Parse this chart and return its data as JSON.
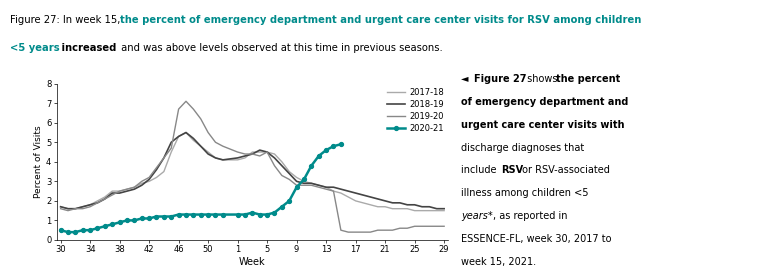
{
  "ylabel": "Percent of Visits",
  "xlabel": "Week",
  "ylim": [
    0,
    8
  ],
  "yticks": [
    0,
    1,
    2,
    3,
    4,
    5,
    6,
    7,
    8
  ],
  "xtick_labels": [
    "30",
    "34",
    "38",
    "42",
    "46",
    "50",
    "1",
    "5",
    "9",
    "13",
    "17",
    "21",
    "25",
    "29"
  ],
  "series_2017": {
    "label": "2017-18",
    "color": "#aaaaaa",
    "linewidth": 1.0
  },
  "series_2018": {
    "label": "2018-19",
    "color": "#444444",
    "linewidth": 1.2
  },
  "series_2019": {
    "label": "2019-20",
    "color": "#888888",
    "linewidth": 1.0
  },
  "series_2020": {
    "label": "2020-21",
    "color": "#008B8B",
    "linewidth": 1.8
  },
  "x_2017": [
    30,
    31,
    32,
    33,
    34,
    35,
    36,
    37,
    38,
    39,
    40,
    41,
    42,
    43,
    44,
    45,
    46,
    47,
    48,
    49,
    50,
    51,
    52,
    1,
    2,
    3,
    4,
    5,
    6,
    7,
    8,
    9,
    10,
    11,
    12,
    13,
    14,
    15,
    16,
    17,
    18,
    19,
    20,
    21,
    22,
    23,
    24,
    25,
    26,
    27,
    28,
    29
  ],
  "y_2017": [
    1.7,
    1.6,
    1.6,
    1.7,
    1.8,
    2.0,
    2.2,
    2.5,
    2.5,
    2.6,
    2.7,
    2.9,
    3.0,
    3.2,
    3.5,
    4.5,
    5.3,
    5.5,
    5.1,
    4.8,
    4.5,
    4.2,
    4.1,
    4.1,
    4.2,
    4.5,
    4.5,
    4.5,
    4.4,
    4.0,
    3.5,
    3.2,
    3.0,
    2.9,
    2.8,
    2.7,
    2.5,
    2.4,
    2.2,
    2.0,
    1.9,
    1.8,
    1.7,
    1.7,
    1.6,
    1.6,
    1.6,
    1.5,
    1.5,
    1.5,
    1.5,
    1.5
  ],
  "x_2018": [
    30,
    31,
    32,
    33,
    34,
    35,
    36,
    37,
    38,
    39,
    40,
    41,
    42,
    43,
    44,
    45,
    46,
    47,
    48,
    49,
    50,
    51,
    52,
    1,
    2,
    3,
    4,
    5,
    6,
    7,
    8,
    9,
    10,
    11,
    12,
    13,
    14,
    15,
    16,
    17,
    18,
    19,
    20,
    21,
    22,
    23,
    24,
    25,
    26,
    27,
    28,
    29
  ],
  "y_2018": [
    1.7,
    1.6,
    1.6,
    1.7,
    1.8,
    1.9,
    2.1,
    2.4,
    2.4,
    2.5,
    2.6,
    2.8,
    3.1,
    3.6,
    4.2,
    5.0,
    5.3,
    5.5,
    5.2,
    4.8,
    4.4,
    4.2,
    4.1,
    4.2,
    4.3,
    4.4,
    4.6,
    4.5,
    4.2,
    3.8,
    3.4,
    3.0,
    2.9,
    2.9,
    2.8,
    2.7,
    2.7,
    2.6,
    2.5,
    2.4,
    2.3,
    2.2,
    2.1,
    2.0,
    1.9,
    1.9,
    1.8,
    1.8,
    1.7,
    1.7,
    1.6,
    1.6
  ],
  "x_2019": [
    30,
    31,
    32,
    33,
    34,
    35,
    36,
    37,
    38,
    39,
    40,
    41,
    42,
    43,
    44,
    45,
    46,
    47,
    48,
    49,
    50,
    51,
    52,
    1,
    2,
    3,
    4,
    5,
    6,
    7,
    8,
    9,
    10,
    11,
    12,
    13,
    14,
    15,
    16,
    17,
    18,
    19,
    20,
    21,
    22,
    23,
    24,
    25,
    26,
    27,
    28,
    29
  ],
  "y_2019": [
    1.6,
    1.5,
    1.6,
    1.6,
    1.7,
    1.9,
    2.1,
    2.3,
    2.5,
    2.6,
    2.7,
    3.0,
    3.2,
    3.7,
    4.2,
    4.7,
    6.7,
    7.1,
    6.7,
    6.2,
    5.5,
    5.0,
    4.8,
    4.5,
    4.4,
    4.4,
    4.3,
    4.5,
    3.8,
    3.3,
    3.1,
    2.8,
    2.8,
    2.8,
    2.7,
    2.6,
    2.5,
    0.5,
    0.4,
    0.4,
    0.4,
    0.4,
    0.5,
    0.5,
    0.5,
    0.6,
    0.6,
    0.7,
    0.7,
    0.7,
    0.7,
    0.7
  ],
  "x_2020": [
    30,
    31,
    32,
    33,
    34,
    35,
    36,
    37,
    38,
    39,
    40,
    41,
    42,
    43,
    44,
    45,
    46,
    47,
    48,
    49,
    50,
    51,
    52,
    1,
    2,
    3,
    4,
    5,
    6,
    7,
    8,
    9,
    10,
    11,
    12,
    13,
    14,
    15
  ],
  "y_2020": [
    0.5,
    0.4,
    0.4,
    0.5,
    0.5,
    0.6,
    0.7,
    0.8,
    0.9,
    1.0,
    1.0,
    1.1,
    1.1,
    1.2,
    1.2,
    1.2,
    1.3,
    1.3,
    1.3,
    1.3,
    1.3,
    1.3,
    1.3,
    1.3,
    1.3,
    1.4,
    1.3,
    1.3,
    1.4,
    1.7,
    2.0,
    2.7,
    3.1,
    3.8,
    4.3,
    4.6,
    4.8,
    4.9
  ],
  "bg_color": "#ffffff",
  "teal_color": "#008B8B",
  "dark_color": "#1a1a1a"
}
